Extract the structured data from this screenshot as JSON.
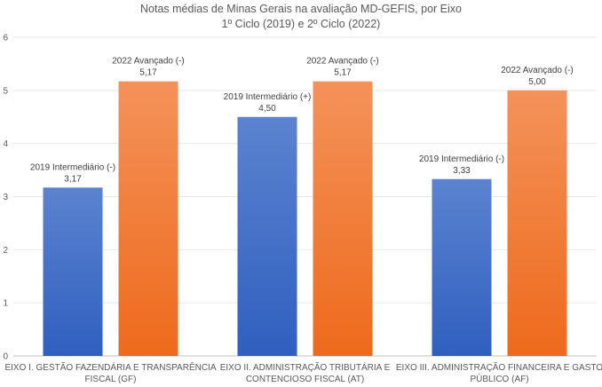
{
  "chart_data": {
    "type": "bar",
    "title": [
      "Notas médias de Minas Gerais na avaliação MD-GEFIS, por Eixo",
      "1º Ciclo (2019) e 2º Ciclo (2022)"
    ],
    "categories": [
      [
        "EIXO I. GESTÃO FAZENDÁRIA E TRANSPARÊNCIA",
        "FISCAL (GF)"
      ],
      [
        "EIXO II. ADMINISTRAÇÃO TRIBUTÁRIA E",
        "CONTENCIOSO FISCAL (AT)"
      ],
      [
        "EIXO III. ADMINISTRAÇÃO FINANCEIRA E GASTO",
        "PÚBLICO (AF)"
      ]
    ],
    "series": [
      {
        "values": [
          3.17,
          4.5,
          3.33
        ],
        "value_labels": [
          "3,17",
          "4,50",
          "3,33"
        ],
        "level_labels": [
          "2019 Intermediário  (-)",
          "2019 Intermediário  (+)",
          "2019 Intermediário  (-)"
        ],
        "color_top": "#5b83cf",
        "color_bottom": "#2f5fbf"
      },
      {
        "values": [
          5.17,
          5.17,
          5.0
        ],
        "value_labels": [
          "5,17",
          "5,17",
          "5,00"
        ],
        "level_labels": [
          "2022 Avançado (-)",
          "2022 Avançado (-)",
          "2022 Avançado (-)"
        ],
        "color_top": "#f4925a",
        "color_bottom": "#ee6a1c"
      }
    ],
    "yticks": [
      "0",
      "1",
      "2",
      "3",
      "4",
      "5",
      "6"
    ],
    "ylim": [
      0,
      6
    ],
    "grid": true,
    "legend": "none"
  }
}
